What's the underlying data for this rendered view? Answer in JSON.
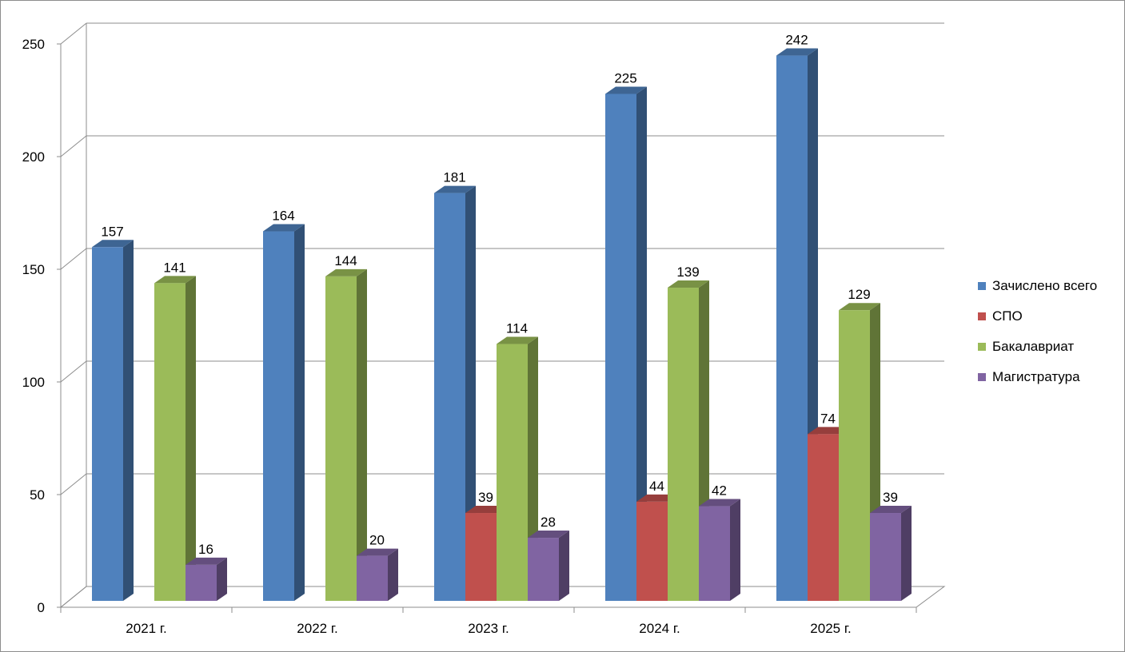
{
  "chart_data": {
    "type": "bar",
    "title": "",
    "xlabel": "",
    "ylabel": "",
    "ylim": [
      0,
      250
    ],
    "yticks": [
      0,
      50,
      100,
      150,
      200,
      250
    ],
    "grid": true,
    "legend_position": "right",
    "categories": [
      "2021 г.",
      "2022 г.",
      "2023 г.",
      "2024 г.",
      "2025 г."
    ],
    "series": [
      {
        "name": "Зачислено всего",
        "color": "#4f81bd",
        "values": [
          157,
          164,
          181,
          225,
          242
        ]
      },
      {
        "name": "СПО",
        "color": "#c0504d",
        "values": [
          null,
          null,
          39,
          44,
          74
        ]
      },
      {
        "name": "Бакалавриат",
        "color": "#9bbb59",
        "values": [
          141,
          144,
          114,
          139,
          129
        ]
      },
      {
        "name": "Магистратура",
        "color": "#8064a2",
        "values": [
          16,
          20,
          28,
          42,
          39
        ]
      }
    ]
  }
}
